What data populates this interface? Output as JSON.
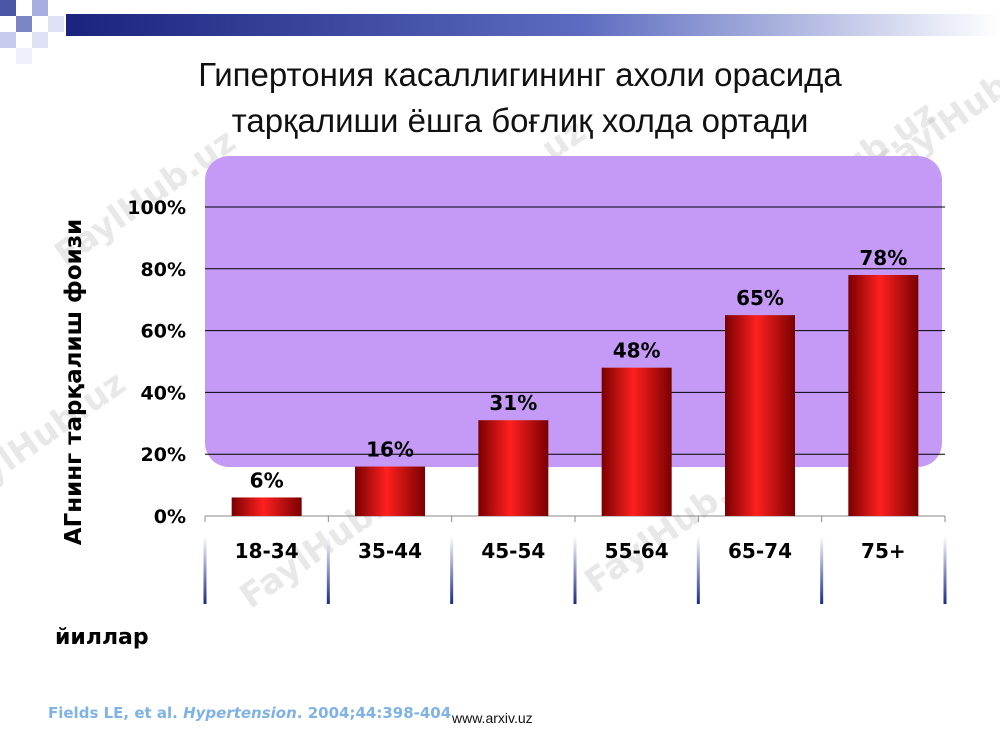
{
  "slide": {
    "title_line1": "Гипертония касаллигининг ахоли орасида",
    "title_line2": "тарқалиши ёшга боғлиқ холда ортади",
    "citation_pre": "Fields LE, et al. ",
    "citation_journal": "Hypertension",
    "citation_post": ". 2004;44:398-404",
    "site": "www.arxiv.uz",
    "watermark": "FaylHub.uz"
  },
  "chart_data": {
    "type": "bar",
    "title": "",
    "xlabel": "йиллар",
    "ylabel": "АГнинг тарқалиш фоизи",
    "categories": [
      "18-34",
      "35-44",
      "45-54",
      "55-64",
      "65-74",
      "75+"
    ],
    "values": [
      6,
      16,
      31,
      48,
      65,
      78
    ],
    "data_labels": [
      "6%",
      "16%",
      "31%",
      "48%",
      "65%",
      "78%"
    ],
    "ylim": [
      0,
      100
    ],
    "yticks": [
      "0%",
      "20%",
      "40%",
      "60%",
      "80%",
      "100%"
    ],
    "ytick_values": [
      0,
      20,
      40,
      60,
      80,
      100
    ],
    "grid": true,
    "legend": "none",
    "colors": {
      "bar_light": "#ff2020",
      "bar_dark": "#7a0000",
      "plot_panel": "#c59af7",
      "grid": "#000000"
    }
  }
}
